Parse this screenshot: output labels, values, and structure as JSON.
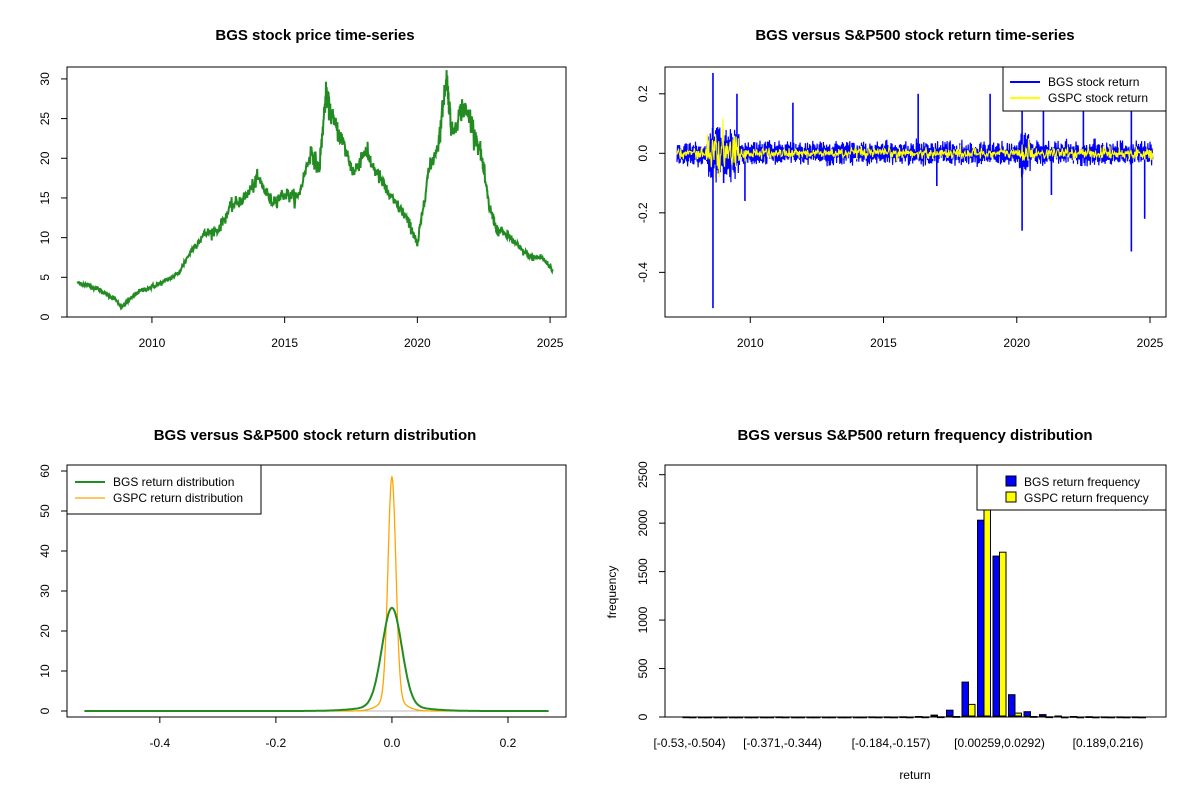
{
  "chart_data": [
    {
      "type": "line",
      "title": "BGS stock price time-series",
      "xlabel": "",
      "ylabel": "",
      "xlim": [
        2006.8,
        2025.6
      ],
      "ylim": [
        0,
        31.5
      ],
      "x_ticks": [
        2010,
        2015,
        2020,
        2025
      ],
      "y_ticks": [
        0,
        5,
        10,
        15,
        20,
        25,
        30
      ],
      "grid": false,
      "color": "#228B22",
      "series": [
        {
          "x": [
            2007.2,
            2007.6,
            2008.0,
            2008.3,
            2008.6,
            2008.85,
            2009.1,
            2009.5,
            2010.0,
            2010.5,
            2011.0,
            2011.5,
            2012.0,
            2012.5,
            2013.0,
            2013.5,
            2014.0,
            2014.5,
            2015.0,
            2015.5,
            2016.0,
            2016.3,
            2016.55,
            2016.8,
            2017.2,
            2017.6,
            2018.0,
            2018.5,
            2019.0,
            2019.5,
            2019.8,
            2020.0,
            2020.4,
            2020.8,
            2021.1,
            2021.3,
            2021.7,
            2022.0,
            2022.4,
            2022.7,
            2023.0,
            2023.5,
            2023.9,
            2024.3,
            2024.7,
            2025.1
          ],
          "values": [
            4.3,
            4.0,
            3.5,
            2.8,
            2.3,
            1.2,
            2.0,
            3.2,
            3.8,
            4.5,
            5.5,
            8.5,
            10.5,
            11.0,
            14.0,
            15.0,
            17.5,
            14.5,
            15.5,
            15.0,
            21.0,
            18.5,
            28.0,
            25.0,
            22.0,
            18.0,
            21.0,
            18.0,
            15.0,
            13.0,
            11.0,
            9.0,
            18.0,
            22.0,
            30.5,
            23.0,
            26.5,
            25.0,
            20.5,
            14.0,
            11.0,
            10.0,
            8.5,
            7.5,
            7.5,
            5.8
          ]
        }
      ]
    },
    {
      "type": "line",
      "title": "BGS versus S&P500 stock return time-series",
      "xlabel": "",
      "ylabel": "",
      "xlim": [
        2006.8,
        2025.6
      ],
      "ylim": [
        -0.55,
        0.29
      ],
      "x_ticks": [
        2010,
        2015,
        2020,
        2025
      ],
      "y_ticks": [
        0.2,
        0.0,
        -0.2,
        -0.4
      ],
      "y_tick_labels": [
        "0.2",
        "0.0",
        "-0.2",
        "-0.4"
      ],
      "legend": "top-right",
      "series": [
        {
          "name": "BGS stock return",
          "color": "#0000FF",
          "spikes": [
            [
              2008.6,
              0.27
            ],
            [
              2008.6,
              -0.52
            ],
            [
              2009.0,
              -0.1
            ],
            [
              2009.5,
              0.2
            ],
            [
              2009.8,
              -0.16
            ],
            [
              2011.6,
              0.17
            ],
            [
              2016.3,
              0.2
            ],
            [
              2017.0,
              -0.11
            ],
            [
              2019.0,
              0.2
            ],
            [
              2020.2,
              0.18
            ],
            [
              2020.2,
              -0.26
            ],
            [
              2021.0,
              0.22
            ],
            [
              2021.3,
              -0.14
            ],
            [
              2022.5,
              0.16
            ],
            [
              2024.3,
              0.22
            ],
            [
              2024.3,
              -0.33
            ],
            [
              2024.8,
              -0.22
            ]
          ]
        },
        {
          "name": "GSPC stock return",
          "color": "#FFFF00"
        }
      ]
    },
    {
      "type": "line",
      "title": "BGS versus S&P500 stock return distribution",
      "xlabel": "",
      "ylabel": "",
      "xlim": [
        -0.56,
        0.3
      ],
      "ylim": [
        -1.5,
        61.5
      ],
      "x_ticks": [
        -0.4,
        -0.2,
        0.0,
        0.2
      ],
      "x_tick_labels": [
        "-0.4",
        "-0.2",
        "0.0",
        "0.2"
      ],
      "y_ticks": [
        0,
        10,
        20,
        30,
        40,
        50,
        60
      ],
      "legend": "top-left",
      "series": [
        {
          "name": "BGS return distribution",
          "color": "#228B22",
          "sd": 0.017,
          "peak": 25.8,
          "tail_sd": 0.05,
          "tail_peak": 1.2,
          "range": [
            -0.53,
            0.27
          ]
        },
        {
          "name": "GSPC return distribution",
          "color": "#FFA500",
          "sd": 0.0068,
          "peak": 58.5,
          "tail_sd": 0.02,
          "tail_peak": 3.0,
          "range": [
            -0.12,
            0.12
          ]
        }
      ]
    },
    {
      "type": "bar",
      "title": "BGS versus S&P500 return frequency distribution",
      "xlabel": "return",
      "ylabel": "frequency",
      "ylim": [
        0,
        2600
      ],
      "y_ticks": [
        0,
        500,
        1000,
        1500,
        2000,
        2500
      ],
      "legend": "top-right",
      "shown_x_labels": [
        "[-0.53,-0.504)",
        "[-0.371,-0.344)",
        "[-0.184,-0.157)",
        "[0.00259,0.0292)",
        "[0.189,0.216)"
      ],
      "shown_x_label_bins": [
        0,
        6,
        13,
        20,
        27
      ],
      "series": [
        {
          "name": "BGS return frequency",
          "color": "#0000FF",
          "values": [
            1,
            0,
            0,
            0,
            0,
            0,
            1,
            0,
            0,
            0,
            0,
            0,
            1,
            1,
            2,
            5,
            20,
            70,
            360,
            2030,
            1660,
            230,
            55,
            25,
            10,
            5,
            3,
            1,
            1,
            1
          ]
        },
        {
          "name": "GSPC return frequency",
          "color": "#FFFF00",
          "values": [
            0,
            0,
            0,
            0,
            0,
            0,
            0,
            0,
            0,
            0,
            0,
            0,
            0,
            0,
            0,
            1,
            2,
            5,
            130,
            2650,
            1700,
            40,
            5,
            2,
            0,
            0,
            0,
            0,
            0,
            0
          ]
        }
      ]
    }
  ]
}
